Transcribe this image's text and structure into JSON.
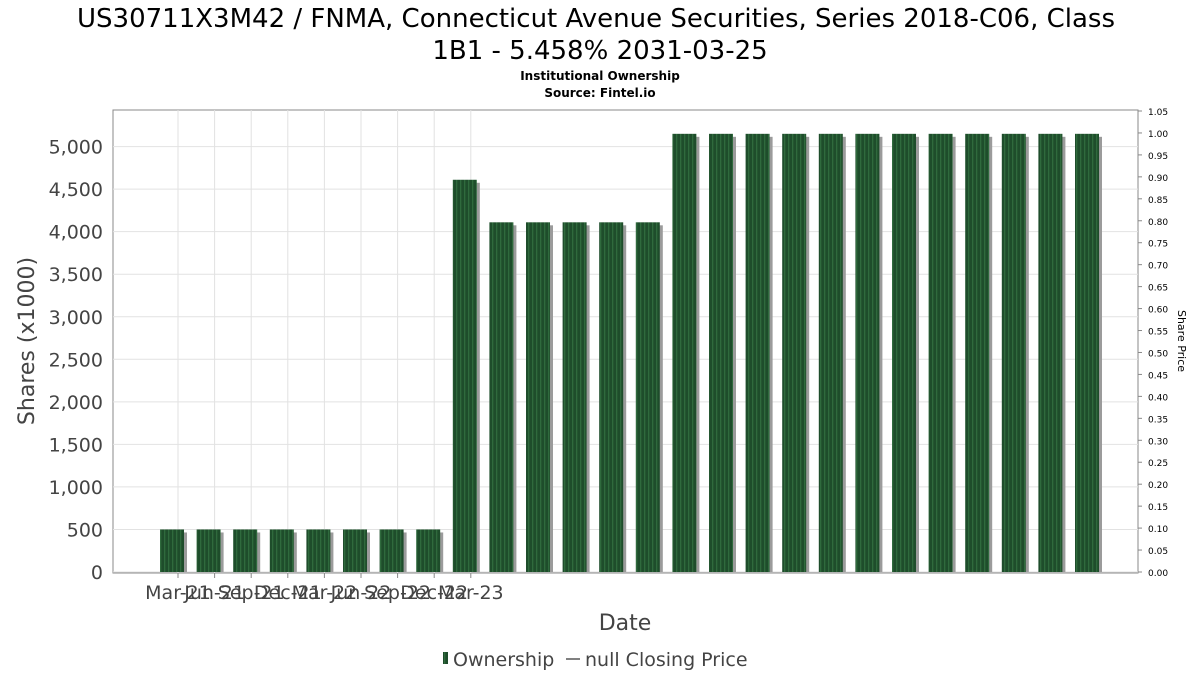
{
  "chart_data": {
    "type": "bar",
    "title": "US30711X3M42 / FNMA, Connecticut Avenue Securities, Series 2018-C06, Class 1B1 - 5.458% 2031-03-25",
    "title_lines": [
      "US30711X3M42 / FNMA, Connecticut Avenue Securities, Series 2018-C06, Class",
      "1B1 - 5.458% 2031-03-25"
    ],
    "subtitle": "Institutional Ownership",
    "source": "Source: Fintel.io",
    "xlabel": "Date",
    "ylabel": "Shares (x1000)",
    "y2label": "Share Price",
    "ylim": [
      0,
      5430
    ],
    "y2lim": [
      0,
      1.05
    ],
    "yticks": [
      "0",
      "500",
      "1,000",
      "1,500",
      "2,000",
      "2,500",
      "3,000",
      "3,500",
      "4,000",
      "4,500",
      "5,000"
    ],
    "y2ticks": [
      "0.00",
      "0.05",
      "0.10",
      "0.15",
      "0.20",
      "0.25",
      "0.30",
      "0.35",
      "0.40",
      "0.45",
      "0.50",
      "0.55",
      "0.60",
      "0.65",
      "0.70",
      "0.75",
      "0.80",
      "0.85",
      "0.90",
      "0.95",
      "1.00",
      "1.05"
    ],
    "xticks": [
      "Mar-21",
      "Jun-21",
      "Sep-21",
      "Dec-21",
      "Mar-22",
      "Jun-22",
      "Sep-22",
      "Dec-22",
      "Mar-23"
    ],
    "grid": true,
    "bar_color": "#1e4d2b",
    "legend": {
      "position": "bottom",
      "entries": [
        {
          "label": "Ownership",
          "color": "#1e4d2b"
        },
        {
          "label": "null Closing Price",
          "color": "#555555"
        }
      ]
    },
    "series": [
      {
        "name": "Ownership",
        "values": [
          500,
          500,
          500,
          500,
          500,
          500,
          500,
          500,
          4610,
          4110,
          4110,
          4110,
          4110,
          4110,
          5150,
          5150,
          5150,
          5150,
          5150,
          5150,
          5150,
          5150,
          5150,
          5150,
          5150,
          5150
        ]
      }
    ]
  }
}
